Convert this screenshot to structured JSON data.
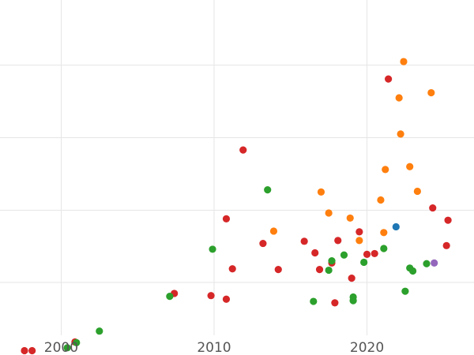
{
  "chart_data": {
    "type": "scatter",
    "title": "",
    "xlabel": "",
    "ylabel": "",
    "xlim": [
      1996,
      2027
    ],
    "ylim": [
      0,
      4.9
    ],
    "x_ticks": [
      2000,
      2010,
      2020
    ],
    "x_tick_labels": [
      "2000",
      "2010",
      "2020"
    ],
    "y_gridlines": [
      1,
      2,
      3,
      4
    ],
    "grid": true,
    "legend": "none",
    "colors": {
      "red": "#d62728",
      "orange": "#ff7f0e",
      "green": "#2ca02c",
      "blue": "#1f77b4",
      "purple": "#9467bd"
    },
    "series": [
      {
        "color": "#d62728",
        "points": [
          [
            1997.6,
            0.06
          ],
          [
            1998.1,
            0.06
          ],
          [
            2000.9,
            0.18
          ],
          [
            2007.4,
            0.85
          ],
          [
            2009.8,
            0.82
          ],
          [
            2010.8,
            0.77
          ],
          [
            2010.8,
            1.88
          ],
          [
            2011.2,
            1.19
          ],
          [
            2011.9,
            2.83
          ],
          [
            2013.2,
            1.54
          ],
          [
            2014.2,
            1.18
          ],
          [
            2015.9,
            1.57
          ],
          [
            2016.6,
            1.41
          ],
          [
            2016.9,
            1.18
          ],
          [
            2017.7,
            1.27
          ],
          [
            2017.9,
            0.72
          ],
          [
            2018.1,
            1.58
          ],
          [
            2019.0,
            1.06
          ],
          [
            2019.5,
            1.7
          ],
          [
            2020.0,
            1.39
          ],
          [
            2020.5,
            1.4
          ],
          [
            2021.4,
            3.81
          ],
          [
            2024.3,
            2.03
          ],
          [
            2025.3,
            1.86
          ],
          [
            2025.2,
            1.51
          ]
        ]
      },
      {
        "color": "#ff7f0e",
        "points": [
          [
            2013.9,
            1.71
          ],
          [
            2017.0,
            2.25
          ],
          [
            2017.5,
            1.96
          ],
          [
            2018.9,
            1.89
          ],
          [
            2019.5,
            1.58
          ],
          [
            2020.9,
            2.14
          ],
          [
            2021.1,
            1.69
          ],
          [
            2021.2,
            2.56
          ],
          [
            2022.1,
            3.55
          ],
          [
            2022.2,
            3.05
          ],
          [
            2022.4,
            4.05
          ],
          [
            2022.8,
            2.6
          ],
          [
            2023.3,
            2.26
          ],
          [
            2024.2,
            3.62
          ]
        ]
      },
      {
        "color": "#2ca02c",
        "points": [
          [
            2000.4,
            0.1
          ],
          [
            2001.0,
            0.17
          ],
          [
            2002.5,
            0.33
          ],
          [
            2007.1,
            0.81
          ],
          [
            2009.9,
            1.46
          ],
          [
            2013.5,
            2.28
          ],
          [
            2016.5,
            0.74
          ],
          [
            2017.5,
            1.17
          ],
          [
            2017.7,
            1.3
          ],
          [
            2018.5,
            1.38
          ],
          [
            2019.1,
            0.8
          ],
          [
            2019.1,
            0.75
          ],
          [
            2019.8,
            1.28
          ],
          [
            2021.1,
            1.47
          ],
          [
            2022.5,
            0.88
          ],
          [
            2022.8,
            1.2
          ],
          [
            2023.0,
            1.16
          ],
          [
            2023.9,
            1.26
          ]
        ]
      },
      {
        "color": "#1f77b4",
        "points": [
          [
            2021.9,
            1.77
          ]
        ]
      },
      {
        "color": "#9467bd",
        "points": [
          [
            2024.4,
            1.27
          ]
        ]
      }
    ]
  }
}
